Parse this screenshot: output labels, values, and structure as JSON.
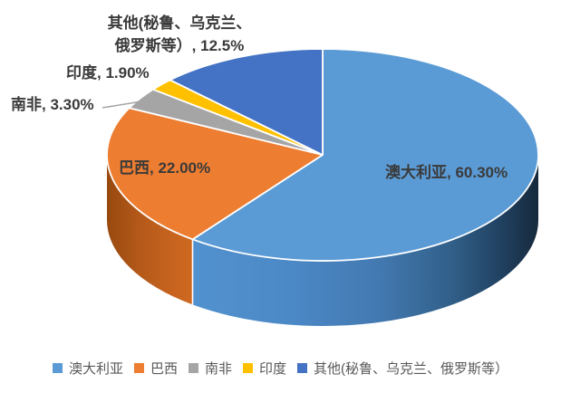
{
  "chart_data": {
    "type": "pie",
    "style": "3d",
    "title": "",
    "categories": [
      "澳大利亚",
      "巴西",
      "南非",
      "印度",
      "其他(秘鲁、乌克兰、俄罗斯等）"
    ],
    "values": [
      60.3,
      22.0,
      3.3,
      1.9,
      12.5
    ],
    "unit": "%",
    "colors": [
      "#5B9BD5",
      "#ED7D31",
      "#A5A5A5",
      "#FFC000",
      "#4472C4"
    ],
    "data_labels": [
      {
        "lines": [
          "澳大利亚, 60.30%"
        ]
      },
      {
        "lines": [
          "巴西, 22.00%"
        ]
      },
      {
        "lines": [
          "南非, 3.30%"
        ]
      },
      {
        "lines": [
          "印度, 1.90%"
        ]
      },
      {
        "lines": [
          "其他(秘鲁、乌克兰、",
          "俄罗斯等）, 12.5%"
        ]
      }
    ],
    "legend": {
      "position": "bottom",
      "items": [
        "澳大利亚",
        "巴西",
        "南非",
        "印度",
        "其他(秘鲁、乌克兰、俄罗斯等）"
      ]
    },
    "background": "#FFFFFF",
    "label_color": "#3A3A3A",
    "legend_text_color": "#595959",
    "leader_line_color": "#A6A6A6"
  }
}
